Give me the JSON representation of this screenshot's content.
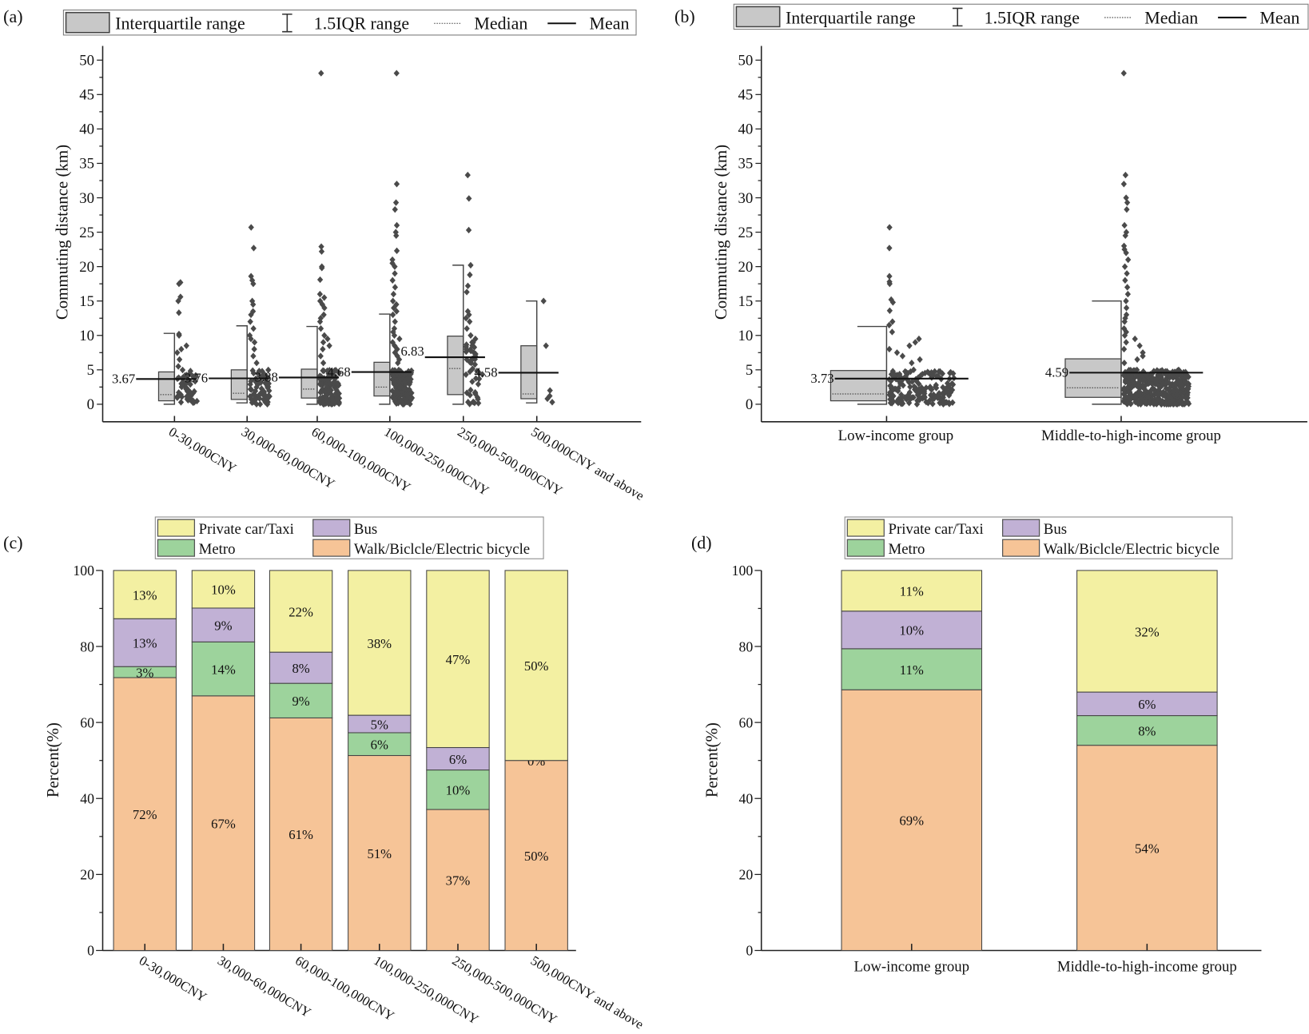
{
  "colors": {
    "box_fill": "#c8c8c8",
    "points": "#4a4a4a",
    "car": "#f3f0a2",
    "bus": "#c1b1d5",
    "metro": "#9dd39c",
    "walk": "#f6c497"
  },
  "box_legend": {
    "iqr": "Interquartile range",
    "whisker": "1.5IQR range",
    "median": "Median",
    "mean": "Mean"
  },
  "bar_legend": {
    "car": "Private car/Taxi",
    "bus": "Bus",
    "metro": "Metro",
    "walk": "Walk/Biclcle/Electric bicycle"
  },
  "chart_data": [
    {
      "panel": "(a)",
      "type": "box",
      "ylabel": "Commuting distance (km)",
      "ylim": [
        -3,
        52
      ],
      "yticks": [
        "0",
        "5",
        "10",
        "15",
        "20",
        "25",
        "30",
        "35",
        "40",
        "45",
        "50"
      ],
      "categories": [
        "0-30,000CNY",
        "30,000-60,000CNY",
        "60,000-100,000CNY",
        "100,000-250,000CNY",
        "250,000-500,000CNY",
        "500,000CNY and above"
      ],
      "boxes": [
        {
          "q1": 0.5,
          "q3": 4.7,
          "median": 1.4,
          "mean": 3.67,
          "mean_label": "3.67",
          "whisker_low": 0,
          "whisker_high": 10.3,
          "points": [
            17.7,
            17.5,
            15.6,
            15.0,
            13.3,
            10.2,
            10.0,
            8.5,
            8.0,
            7.5,
            6.5,
            5.5
          ]
        },
        {
          "q1": 0.7,
          "q3": 5.0,
          "median": 1.6,
          "mean": 3.76,
          "mean_label": "3.76",
          "whisker_low": 0.2,
          "whisker_high": 11.4,
          "points": [
            25.7,
            22.7,
            18.6,
            18.0,
            17.5,
            15.0,
            14.5,
            13.5,
            13.0,
            12.0,
            11.0,
            10.0,
            9.5,
            9.0,
            8.0,
            7.0,
            6.0
          ]
        },
        {
          "q1": 0.9,
          "q3": 5.1,
          "median": 2.2,
          "mean": 3.88,
          "mean_label": "3.88",
          "whisker_low": 0,
          "whisker_high": 11.3,
          "points": [
            48.1,
            22.9,
            22.2,
            20.0,
            19.8,
            18.1,
            16.0,
            15.5,
            15.0,
            14.5,
            14.0,
            13.0,
            12.5,
            12.0,
            11.0,
            10.0,
            9.5,
            9.0,
            8.5,
            8.0,
            7.0,
            6.0
          ]
        },
        {
          "q1": 1.2,
          "q3": 6.1,
          "median": 2.5,
          "mean": 4.68,
          "mean_label": "4.68",
          "whisker_low": 0,
          "whisker_high": 13.1,
          "points": [
            48.1,
            32.0,
            29.3,
            28.3,
            26.0,
            25.0,
            24.5,
            22.3,
            21.0,
            20.5,
            20.0,
            19.0,
            18.0,
            17.0,
            16.0,
            15.0,
            14.5,
            14.0,
            13.5,
            13.0,
            12.0,
            11.0,
            10.5,
            10.0,
            9.5,
            9.0,
            8.5,
            8.0,
            7.5,
            7.0,
            6.5,
            6.0
          ]
        },
        {
          "q1": 1.4,
          "q3": 9.9,
          "median": 5.2,
          "mean": 6.83,
          "mean_label": "6.83",
          "whisker_low": 0,
          "whisker_high": 20.2,
          "points": [
            33.3,
            29.9,
            25.3,
            20.2,
            18.8,
            17.2,
            16.3,
            13.5,
            13.0,
            12.5,
            12.0,
            11.0,
            10.0,
            9.5,
            9.0,
            8.0,
            7.5,
            7.0,
            6.5,
            6.0
          ]
        },
        {
          "q1": 0.8,
          "q3": 8.5,
          "median": 1.5,
          "mean": 4.58,
          "mean_label": "4.58",
          "whisker_low": 0.2,
          "whisker_high": 15.0,
          "points": [
            15.0,
            8.5,
            2.0,
            1.2,
            0.8,
            0.3
          ]
        }
      ]
    },
    {
      "panel": "(b)",
      "type": "box",
      "ylabel": "Commuting distance (km)",
      "ylim": [
        -3,
        52
      ],
      "yticks": [
        "0",
        "5",
        "10",
        "15",
        "20",
        "25",
        "30",
        "35",
        "40",
        "45",
        "50"
      ],
      "categories": [
        "Low-income group",
        "Middle-to-high-income group"
      ],
      "boxes": [
        {
          "q1": 0.5,
          "q3": 4.9,
          "median": 1.5,
          "mean": 3.73,
          "mean_label": "3.73",
          "whisker_low": 0,
          "whisker_high": 11.3,
          "points": [
            25.7,
            22.7,
            18.6,
            17.8,
            17.5,
            15.2,
            14.8,
            13.6,
            12.0,
            11.5,
            10.5,
            9.5,
            9.0,
            8.5,
            8.0,
            7.5,
            7.0,
            6.5,
            6.0,
            5.0
          ]
        },
        {
          "q1": 1.0,
          "q3": 6.6,
          "median": 2.4,
          "mean": 4.59,
          "mean_label": "4.59",
          "whisker_low": 0,
          "whisker_high": 15.0,
          "points": [
            48.1,
            33.3,
            32.0,
            30.0,
            29.3,
            28.3,
            26.0,
            25.0,
            24.5,
            23.0,
            22.5,
            22.0,
            21.0,
            20.0,
            19.0,
            18.0,
            17.0,
            16.0,
            15.0,
            14.0,
            13.0,
            12.5,
            12.0,
            11.0,
            10.5,
            10.0,
            9.5,
            9.0,
            8.5,
            8.0,
            7.5,
            7.0,
            6.5,
            6.0
          ]
        }
      ]
    },
    {
      "panel": "(c)",
      "type": "stacked-bar",
      "ylabel": "Percent(%)",
      "ylim": [
        0,
        100
      ],
      "yticks": [
        "0",
        "20",
        "40",
        "60",
        "80",
        "100"
      ],
      "categories": [
        "0-30,000CNY",
        "30,000-60,000CNY",
        "60,000-100,000CNY",
        "100,000-250,000CNY",
        "250,000-500,000CNY",
        "500,000CNY and above"
      ],
      "series": [
        {
          "key": "walk",
          "values": [
            71.8,
            67.0,
            61.2,
            51.3,
            37.1,
            50.0
          ],
          "labels": [
            "72%",
            "67%",
            "61%",
            "51%",
            "37%",
            "50%"
          ]
        },
        {
          "key": "metro",
          "values": [
            2.9,
            14.2,
            9.1,
            6.0,
            10.4,
            0
          ],
          "labels": [
            "3%",
            "14%",
            "9%",
            "6%",
            "10%",
            "0%"
          ]
        },
        {
          "key": "bus",
          "values": [
            12.6,
            8.9,
            8.2,
            4.6,
            5.9,
            0
          ],
          "labels": [
            "13%",
            "9%",
            "8%",
            "5%",
            "6%",
            ""
          ]
        },
        {
          "key": "car",
          "values": [
            12.7,
            9.9,
            21.5,
            38.1,
            46.6,
            50.0
          ],
          "labels": [
            "13%",
            "10%",
            "22%",
            "38%",
            "47%",
            "50%"
          ]
        }
      ]
    },
    {
      "panel": "(d)",
      "type": "stacked-bar",
      "ylabel": "Percent(%)",
      "ylim": [
        0,
        100
      ],
      "yticks": [
        "0",
        "20",
        "40",
        "60",
        "80",
        "100"
      ],
      "categories": [
        "Low-income group",
        "Middle-to-high-income group"
      ],
      "series": [
        {
          "key": "walk",
          "values": [
            68.6,
            54.0
          ],
          "labels": [
            "69%",
            "54%"
          ]
        },
        {
          "key": "metro",
          "values": [
            10.8,
            7.8
          ],
          "labels": [
            "11%",
            "8%"
          ]
        },
        {
          "key": "bus",
          "values": [
            9.9,
            6.2
          ],
          "labels": [
            "10%",
            "6%"
          ]
        },
        {
          "key": "car",
          "values": [
            10.7,
            32.0
          ],
          "labels": [
            "11%",
            "32%"
          ]
        }
      ]
    }
  ]
}
